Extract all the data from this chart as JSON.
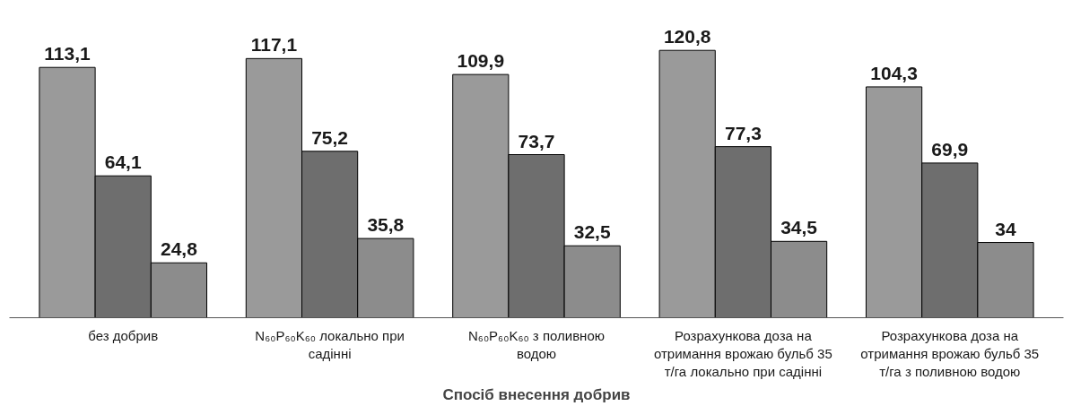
{
  "chart_data": {
    "type": "bar",
    "xlabel": "Спосіб внесення добрив",
    "categories": [
      "без добрив",
      "N₆₀P₆₀K₆₀ локально при садінні",
      "N₆₀P₆₀K₆₀ з поливною водою",
      "Розрахункова доза на отримання врожаю бульб 35 т/га локально при садінні",
      "Розрахункова доза на отримання врожаю бульб 35 т/га з поливною водою"
    ],
    "series": [
      {
        "color": "#9a9a9a",
        "values": [
          113.1,
          117.1,
          109.9,
          120.8,
          104.3
        ],
        "value_labels": [
          "113,1",
          "117,1",
          "109,9",
          "120,8",
          "104,3"
        ]
      },
      {
        "color": "#6e6e6e",
        "values": [
          64.1,
          75.2,
          73.7,
          77.3,
          69.9
        ],
        "value_labels": [
          "64,1",
          "75,2",
          "73,7",
          "77,3",
          "69,9"
        ]
      },
      {
        "color": "#8c8c8c",
        "values": [
          24.8,
          35.8,
          32.5,
          34.5,
          34
        ],
        "value_labels": [
          "24,8",
          "35,8",
          "32,5",
          "34,5",
          "34"
        ]
      }
    ],
    "grid": false,
    "tick_labels": "x"
  }
}
